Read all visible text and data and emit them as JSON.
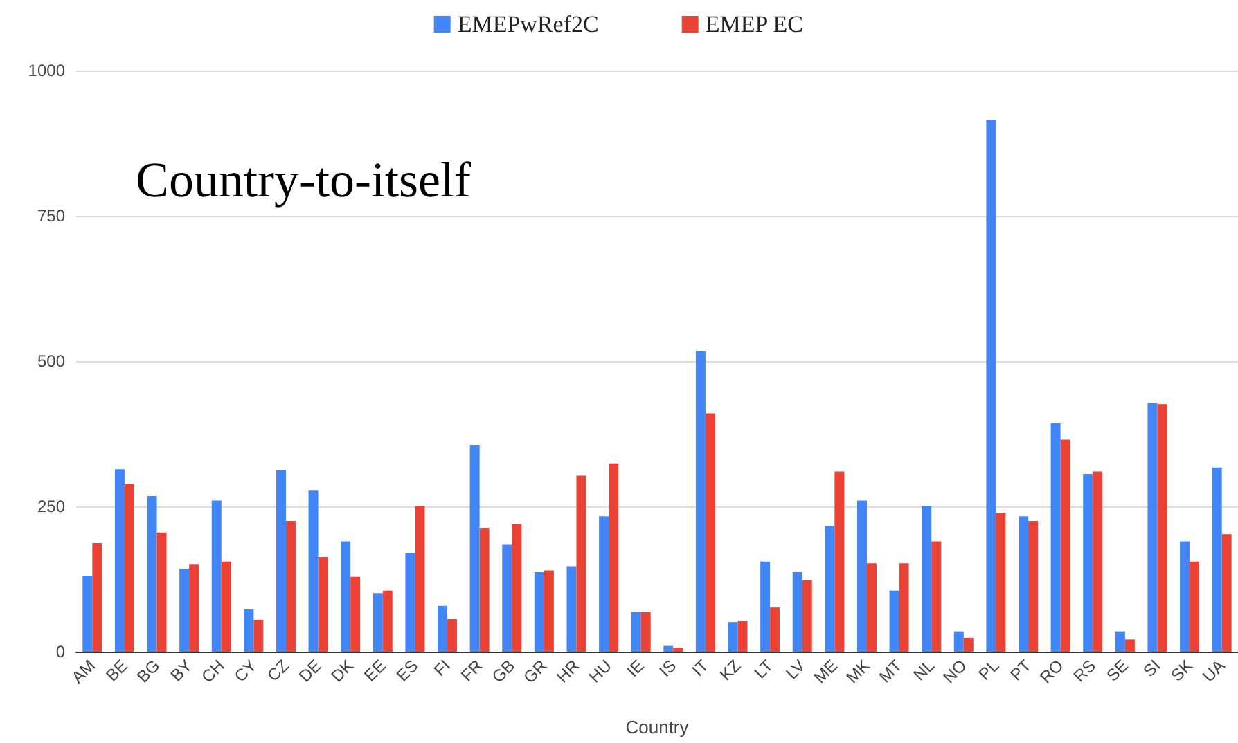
{
  "chart_data": {
    "type": "bar",
    "xlabel": "Country",
    "annotations": [
      "Country-to-itself"
    ],
    "categories": [
      "AM",
      "BE",
      "BG",
      "BY",
      "CH",
      "CY",
      "CZ",
      "DE",
      "DK",
      "EE",
      "ES",
      "FI",
      "FR",
      "GB",
      "GR",
      "HR",
      "HU",
      "IE",
      "IS",
      "IT",
      "KZ",
      "LT",
      "LV",
      "ME",
      "MK",
      "MT",
      "NL",
      "NO",
      "PL",
      "PT",
      "RO",
      "RS",
      "SE",
      "SI",
      "SK",
      "UA"
    ],
    "series": [
      {
        "name": "EMEPwRef2C",
        "color": "#4285f4",
        "values": [
          131,
          314,
          268,
          143,
          260,
          73,
          312,
          277,
          190,
          101,
          169,
          79,
          356,
          184,
          137,
          147,
          233,
          68,
          10,
          517,
          51,
          155,
          137,
          216,
          260,
          105,
          251,
          35,
          915,
          233,
          393,
          306,
          35,
          428,
          190,
          317
        ]
      },
      {
        "name": "EMEP EC",
        "color": "#ea4335",
        "values": [
          187,
          288,
          205,
          151,
          155,
          55,
          225,
          163,
          129,
          105,
          251,
          56,
          213,
          219,
          140,
          303,
          324,
          68,
          7,
          410,
          53,
          76,
          123,
          310,
          152,
          152,
          190,
          24,
          239,
          225,
          365,
          310,
          21,
          426,
          155,
          202
        ]
      }
    ],
    "ylim": [
      0,
      1000
    ],
    "yticks": [
      0,
      250,
      500,
      750,
      1000
    ],
    "grid": "y",
    "legend": "top"
  }
}
